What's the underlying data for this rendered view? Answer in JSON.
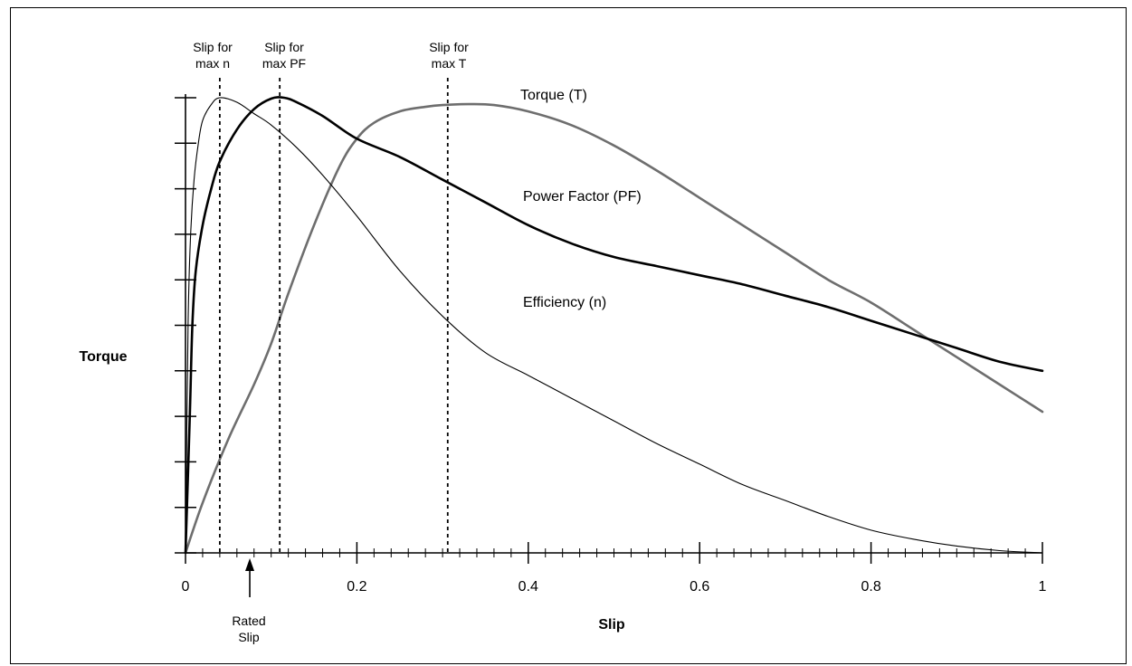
{
  "chart_data": {
    "type": "line",
    "xlabel": "Slip",
    "ylabel": "Torque",
    "xlim": [
      0,
      1
    ],
    "ylim": [
      0,
      1
    ],
    "x_ticks": [
      0,
      0.2,
      0.4,
      0.6,
      0.8,
      1
    ],
    "x_tick_labels": [
      "0",
      "0.2",
      "0.4",
      "0.6",
      "0.8",
      "1"
    ],
    "y_major_tick_count": 10,
    "grid": false,
    "legend": "none",
    "series": [
      {
        "name": "Torque (T)",
        "color": "#6e6e6e",
        "width": "thick",
        "x": [
          0,
          0.02,
          0.05,
          0.08,
          0.1,
          0.12,
          0.15,
          0.18,
          0.2,
          0.22,
          0.25,
          0.28,
          0.3,
          0.33,
          0.36,
          0.4,
          0.45,
          0.5,
          0.55,
          0.6,
          0.65,
          0.7,
          0.75,
          0.8,
          0.85,
          0.9,
          0.95,
          1.0
        ],
        "y": [
          0,
          0.11,
          0.25,
          0.37,
          0.46,
          0.57,
          0.72,
          0.85,
          0.91,
          0.945,
          0.97,
          0.98,
          0.984,
          0.986,
          0.984,
          0.97,
          0.94,
          0.895,
          0.84,
          0.78,
          0.72,
          0.66,
          0.6,
          0.55,
          0.49,
          0.43,
          0.37,
          0.31
        ]
      },
      {
        "name": "Power Factor (PF)",
        "color": "#000000",
        "width": "thick",
        "x": [
          0,
          0.005,
          0.008,
          0.012,
          0.02,
          0.03,
          0.04,
          0.06,
          0.08,
          0.1,
          0.115,
          0.13,
          0.16,
          0.2,
          0.25,
          0.3,
          0.35,
          0.4,
          0.45,
          0.5,
          0.55,
          0.6,
          0.65,
          0.7,
          0.75,
          0.8,
          0.85,
          0.9,
          0.95,
          1.0
        ],
        "y": [
          0,
          0.3,
          0.5,
          0.62,
          0.72,
          0.8,
          0.86,
          0.93,
          0.975,
          0.998,
          1.0,
          0.99,
          0.96,
          0.91,
          0.87,
          0.82,
          0.77,
          0.72,
          0.68,
          0.65,
          0.63,
          0.61,
          0.59,
          0.565,
          0.54,
          0.51,
          0.48,
          0.45,
          0.42,
          0.4
        ]
      },
      {
        "name": "Efficiency (n)",
        "color": "#000000",
        "width": "thin",
        "x": [
          0,
          0.003,
          0.006,
          0.01,
          0.015,
          0.02,
          0.03,
          0.04,
          0.06,
          0.08,
          0.1,
          0.13,
          0.16,
          0.2,
          0.25,
          0.3,
          0.35,
          0.4,
          0.45,
          0.5,
          0.55,
          0.6,
          0.65,
          0.7,
          0.75,
          0.8,
          0.85,
          0.9,
          0.95,
          1.0
        ],
        "y": [
          0,
          0.5,
          0.7,
          0.82,
          0.9,
          0.95,
          0.985,
          1.0,
          0.99,
          0.965,
          0.94,
          0.89,
          0.83,
          0.74,
          0.62,
          0.52,
          0.44,
          0.39,
          0.34,
          0.29,
          0.24,
          0.195,
          0.15,
          0.115,
          0.08,
          0.05,
          0.03,
          0.015,
          0.005,
          0.0
        ]
      }
    ],
    "vlines": [
      {
        "x": 0.04,
        "label": [
          "Slip for",
          "max n"
        ]
      },
      {
        "x": 0.11,
        "label": [
          "Slip for",
          "max PF"
        ]
      },
      {
        "x": 0.306,
        "label": [
          "Slip for",
          "max T"
        ]
      }
    ],
    "arrow_annotation": {
      "x": 0.075,
      "label": [
        "Rated",
        "Slip"
      ]
    }
  }
}
